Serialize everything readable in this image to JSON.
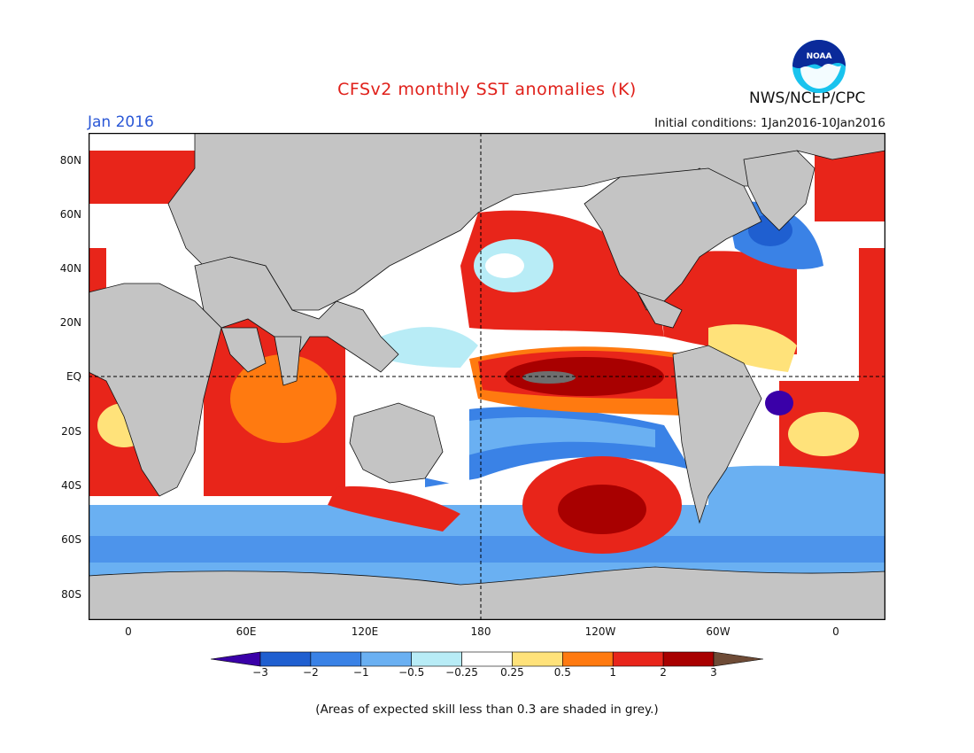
{
  "header": {
    "title": "CFSv2 monthly SST anomalies (K)",
    "month": "Jan 2016",
    "initial_conditions": "Initial conditions: 1Jan2016-10Jan2016",
    "agency": "NWS/NCEP/CPC",
    "logo_text": "NOAA"
  },
  "map": {
    "y_ticks": [
      "80N",
      "60N",
      "40N",
      "20N",
      "EQ",
      "20S",
      "40S",
      "60S",
      "80S"
    ],
    "x_ticks": [
      "0",
      "60E",
      "120E",
      "180",
      "120W",
      "60W",
      "0"
    ],
    "land_color": "#c4c4c4",
    "reference_lines": [
      "EQ",
      "180"
    ]
  },
  "colorbar": {
    "labels": [
      "−3",
      "−2",
      "−1",
      "−0.5",
      "−0.25",
      "0.25",
      "0.5",
      "1",
      "2",
      "3"
    ],
    "colors": [
      "#3a00a8",
      "#1f5fd0",
      "#3a82e6",
      "#6ab0f2",
      "#b8ecf6",
      "#ffffff",
      "#ffe27a",
      "#ff7a10",
      "#e8251a",
      "#a80000",
      "#6e4b36"
    ]
  },
  "footnote": "(Areas of expected skill less than 0.3 are shaded in grey.)"
}
